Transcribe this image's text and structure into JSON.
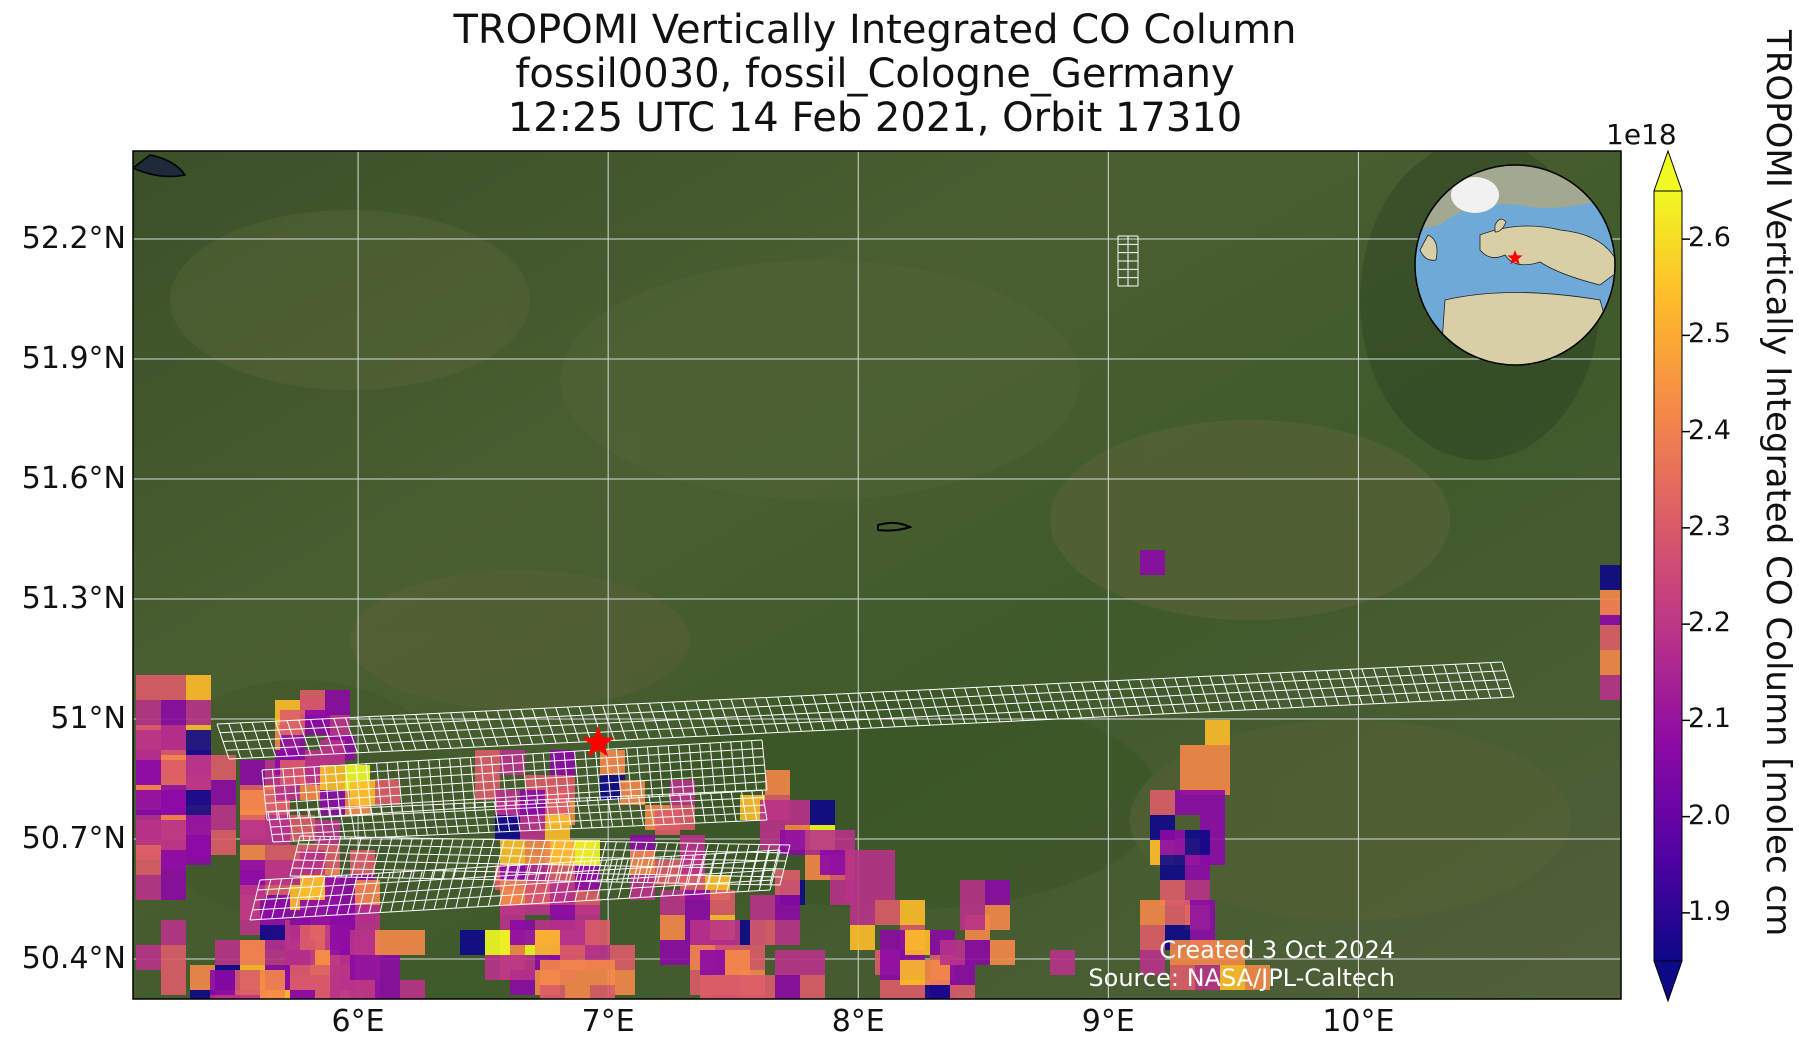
{
  "title": {
    "line1": "TROPOMI Vertically Integrated CO Column",
    "line2": "fossil0030, fossil_Cologne_Germany",
    "line3": "12:25 UTC 14 Feb 2021, Orbit 17310"
  },
  "map": {
    "lon_range": [
      5.1,
      11.05
    ],
    "lat_range": [
      50.3,
      52.42
    ],
    "lat_ticks": [
      "52.2°N",
      "51.9°N",
      "51.6°N",
      "51.3°N",
      "51°N",
      "50.7°N",
      "50.4°N"
    ],
    "lon_ticks": [
      "6°E",
      "7°E",
      "8°E",
      "9°E",
      "10°E"
    ],
    "site_marker": {
      "name": "fossil_Cologne_Germany",
      "lon": 6.96,
      "lat": 50.94,
      "color": "#ff0000"
    },
    "background": "satellite imagery",
    "grid_color": "#d8d8d8"
  },
  "credits": {
    "created": "Created 3 Oct 2024",
    "source": "Source: NASA/JPL-Caltech"
  },
  "colorbar": {
    "label": "TROPOMI Vertically Integrated CO Column [molec cm",
    "exponent": "1e18",
    "range": [
      1.85,
      2.65
    ],
    "ticks": [
      "1.9",
      "2.0",
      "2.1",
      "2.2",
      "2.3",
      "2.4",
      "2.5",
      "2.6"
    ],
    "colormap": "plasma",
    "extend": "both"
  },
  "inset_globe": {
    "description_marker_color": "#ff0000",
    "ocean_color": "#6fa9d8",
    "land_color": "#d8cfa7"
  }
}
